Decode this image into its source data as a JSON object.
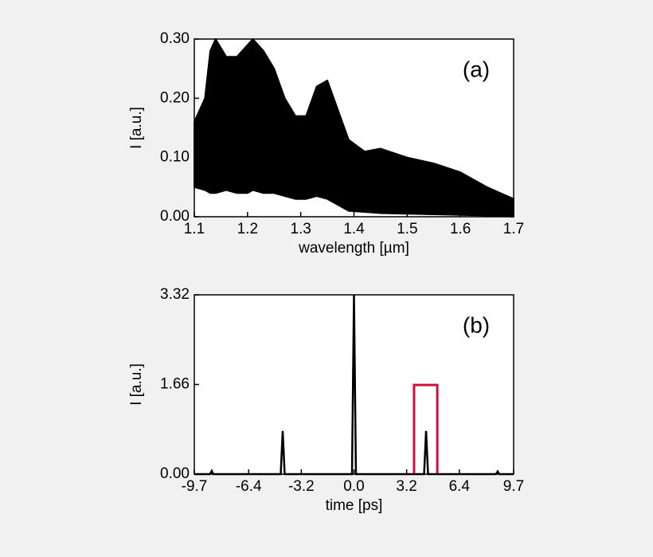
{
  "chart_data": [
    {
      "type": "band",
      "annotation": "(a)",
      "xlabel": "wavelength [µm]",
      "ylabel": "I [a.u.]",
      "x": [
        1.1,
        1.12,
        1.13,
        1.14,
        1.16,
        1.18,
        1.2,
        1.21,
        1.23,
        1.25,
        1.27,
        1.29,
        1.31,
        1.33,
        1.35,
        1.37,
        1.39,
        1.42,
        1.45,
        1.5,
        1.55,
        1.6,
        1.65,
        1.7
      ],
      "upper": [
        0.16,
        0.2,
        0.28,
        0.3,
        0.27,
        0.27,
        0.29,
        0.3,
        0.28,
        0.25,
        0.2,
        0.17,
        0.17,
        0.22,
        0.23,
        0.18,
        0.13,
        0.11,
        0.115,
        0.1,
        0.09,
        0.075,
        0.05,
        0.03
      ],
      "lower": [
        0.05,
        0.045,
        0.04,
        0.04,
        0.045,
        0.04,
        0.04,
        0.045,
        0.04,
        0.04,
        0.035,
        0.03,
        0.03,
        0.035,
        0.03,
        0.02,
        0.01,
        0.008,
        0.006,
        0.005,
        0.004,
        0.003,
        0.002,
        0.0
      ],
      "color": "#000000",
      "xlim": [
        1.1,
        1.7
      ],
      "xticks": [
        1.1,
        1.2,
        1.3,
        1.4,
        1.5,
        1.6,
        1.7
      ],
      "ylim": [
        0,
        0.3
      ],
      "yticks": [
        {
          "value": 0,
          "label": "0.00"
        },
        {
          "value": 0.1,
          "label": "0.10"
        },
        {
          "value": 0.2,
          "label": "0.20"
        },
        {
          "value": 0.3,
          "label": "0.30"
        }
      ]
    },
    {
      "type": "line",
      "annotation": "(b)",
      "xlabel": "time [ps]",
      "ylabel": "I [a.u.]",
      "x": [
        -9.7,
        -8.75,
        -8.64,
        -8.55,
        -4.45,
        -4.33,
        -4.21,
        -0.12,
        0,
        0.12,
        4.26,
        4.38,
        4.5,
        8.63,
        8.73,
        8.83,
        9.7
      ],
      "values": [
        0,
        0,
        0.06,
        0,
        0,
        0.8,
        0,
        0,
        3.32,
        0,
        0,
        0.8,
        0,
        0,
        0.05,
        0,
        0
      ],
      "color": "#000000",
      "highlight": {
        "x": [
          3.65,
          5.06
        ],
        "y": 1.65,
        "color": "#d0103a"
      },
      "xlim": [
        -9.7,
        9.7
      ],
      "xticks": [
        -9.7,
        -6.4,
        -3.2,
        {
          "value": 0,
          "label": "0.0"
        },
        3.2,
        6.4,
        9.7
      ],
      "ylim": [
        0,
        3.32
      ],
      "yticks": [
        {
          "value": 0,
          "label": "0.00"
        },
        1.66,
        3.32
      ]
    }
  ]
}
